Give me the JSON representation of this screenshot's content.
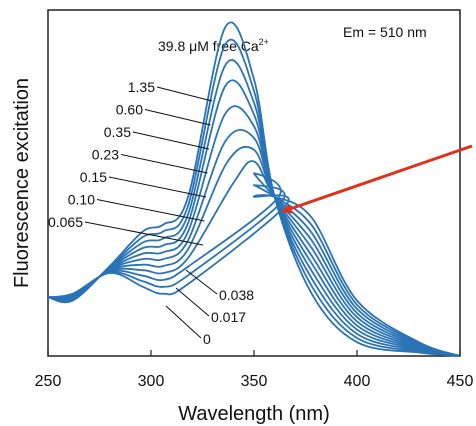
{
  "chart_data": {
    "type": "line",
    "title": "",
    "xlabel": "Wavelength (nm)",
    "ylabel": "Fluorescence excitation",
    "annotation_box": "Em = 510 nm",
    "top_series_label": "39.8 μM free Ca",
    "top_series_superscript": "2+",
    "xlim": [
      250,
      450
    ],
    "ylim": [
      0,
      1
    ],
    "xticks": [
      "250",
      "300",
      "350",
      "400",
      "450"
    ],
    "grid": false,
    "legend": "none",
    "line_color": "#2a73b5",
    "arrow_color": "#e0311d",
    "isosbestic_point": {
      "x": 360,
      "y": 0.46
    },
    "upper_labels": [
      "1.35",
      "0.60",
      "0.35",
      "0.23",
      "0.15",
      "0.10",
      "0.065"
    ],
    "lower_labels": [
      "0.038",
      "0.017",
      "0"
    ],
    "series": [
      {
        "name": "39.8",
        "peak_x": 336,
        "peak_y": 0.95
      },
      {
        "name": "1.35",
        "peak_x": 336,
        "peak_y": 0.9
      },
      {
        "name": "0.60",
        "peak_x": 336,
        "peak_y": 0.84
      },
      {
        "name": "0.35",
        "peak_x": 336,
        "peak_y": 0.78
      },
      {
        "name": "0.23",
        "peak_x": 336,
        "peak_y": 0.7
      },
      {
        "name": "0.15",
        "peak_x": 336,
        "peak_y": 0.62
      },
      {
        "name": "0.10",
        "peak_x": 337,
        "peak_y": 0.56
      },
      {
        "name": "0.065",
        "peak_x": 340,
        "peak_y": 0.5
      },
      {
        "name": "0.038",
        "peak_x": 362,
        "peak_y": 0.46
      },
      {
        "name": "0.017",
        "peak_x": 364,
        "peak_y": 0.45
      },
      {
        "name": "0",
        "peak_x": 366,
        "peak_y": 0.44
      }
    ]
  }
}
